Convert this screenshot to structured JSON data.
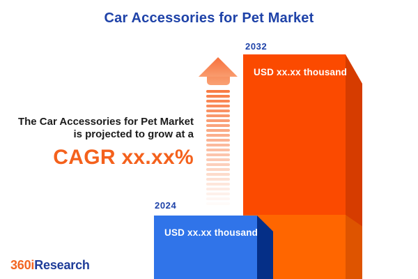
{
  "title": "Car Accessories for Pet Market",
  "annotation": {
    "line1": "The Car Accessories for Pet Market",
    "line2": "is projected to grow at a",
    "cagr": "CAGR xx.xx%"
  },
  "logo": {
    "orange": "360i",
    "blue": "Research"
  },
  "arrow": {
    "stripe_count": 24
  },
  "colors": {
    "title_blue": "#1E42A8",
    "body_text": "#1B1B1B",
    "cagr_orange": "#F4611C",
    "arrow_head_top": "#F7703C",
    "arrow_head_bottom": "#F99C6E",
    "arrow_stripe": "#F87C45",
    "bar_2032_front": "#FB4A00",
    "bar_2032_side": "#D63C00",
    "bar_2032_base_front": "#FF6600",
    "bar_2032_base_side": "#DE5400",
    "bar_2024_front": "#3074E9",
    "bar_2024_side": "#052F87",
    "logo_orange": "#F26522",
    "logo_blue": "#1F3D99"
  },
  "chart_data": {
    "type": "bar",
    "title": "Car Accessories for Pet Market",
    "unit": "USD thousand",
    "categories": [
      "2024",
      "2032"
    ],
    "bars": [
      {
        "year": "2024",
        "value": "xx.xx",
        "value_label": "USD xx.xx thousand"
      },
      {
        "year": "2032",
        "value": "xx.xx",
        "value_label": "USD xx.xx thousand"
      }
    ],
    "growth_note": "CAGR xx.xx%",
    "layout": "two 3D bars bottom-right, striped growth arrow between annotation and tall bar"
  }
}
